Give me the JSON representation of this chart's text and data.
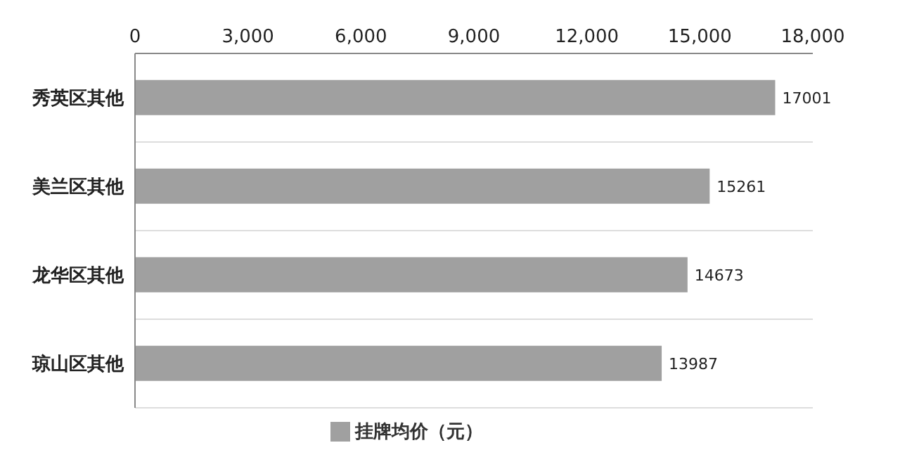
{
  "chart_data": {
    "type": "bar",
    "orientation": "horizontal",
    "categories": [
      "秀英区其他",
      "美兰区其他",
      "龙华区其他",
      "琼山区其他"
    ],
    "series": [
      {
        "name": "挂牌均价（元）",
        "color": "#a0a0a0",
        "values": [
          17001,
          15261,
          14673,
          13987
        ]
      }
    ],
    "xlim": [
      0,
      18000
    ],
    "xticks": [
      {
        "value": 0,
        "label": "0"
      },
      {
        "value": 3000,
        "label": "3,000"
      },
      {
        "value": 6000,
        "label": "6,000"
      },
      {
        "value": 9000,
        "label": "9,000"
      },
      {
        "value": 12000,
        "label": "12,000"
      },
      {
        "value": 15000,
        "label": "15,000"
      },
      {
        "value": 18000,
        "label": "18,000"
      }
    ],
    "grid": "y",
    "legend": "bottom",
    "data_labels": true
  }
}
